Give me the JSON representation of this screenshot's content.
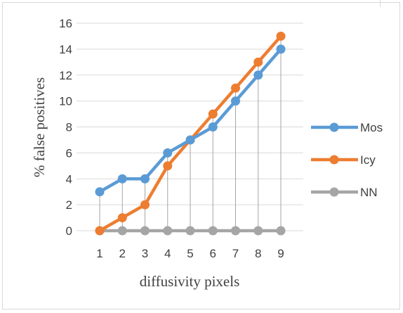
{
  "chart_data": {
    "type": "line",
    "title": "",
    "xlabel": "diffusivity pixels",
    "ylabel": "% false  positives",
    "x": [
      1,
      2,
      3,
      4,
      5,
      6,
      7,
      8,
      9
    ],
    "ylim": [
      0,
      16
    ],
    "yticks": [
      0,
      2,
      4,
      6,
      8,
      10,
      12,
      14,
      16
    ],
    "grid": true,
    "drop_lines": true,
    "legend_position": "right",
    "series": [
      {
        "name": "Mos",
        "color": "#5b9bd5",
        "values": [
          3,
          4,
          4,
          6,
          7,
          8,
          10,
          12,
          14
        ]
      },
      {
        "name": "Icy",
        "color": "#ed7d31",
        "values": [
          0,
          1,
          2,
          5,
          7,
          9,
          11,
          13,
          15
        ]
      },
      {
        "name": "NN",
        "color": "#a5a5a5",
        "values": [
          0,
          0,
          0,
          0,
          0,
          0,
          0,
          0,
          0
        ]
      }
    ]
  }
}
